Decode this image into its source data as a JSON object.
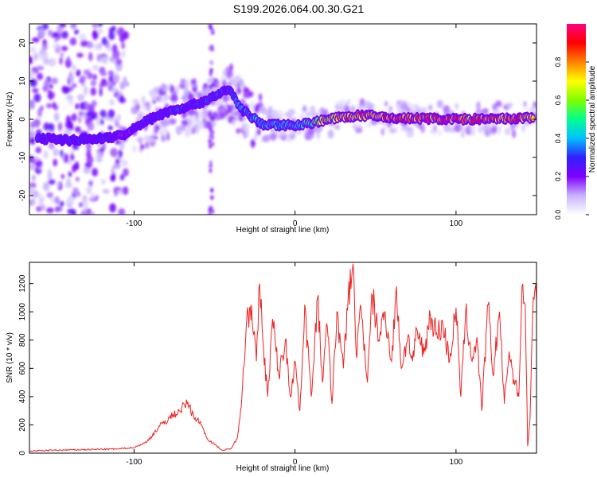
{
  "title": "S199.2026.064.00.30.G21",
  "chart_data": [
    {
      "type": "heatmap",
      "name": "spectrogram",
      "xlabel": "Height of straight line (km)",
      "ylabel": "Frequency (Hz)",
      "xlim": [
        -165,
        150
      ],
      "ylim": [
        -25,
        25
      ],
      "xticks": [
        -100,
        0,
        100
      ],
      "xtick_labels": [
        "-100",
        "0",
        "100"
      ],
      "yticks": [
        -20,
        -10,
        0,
        10,
        20
      ],
      "ytick_labels": [
        "-20",
        "-10",
        "0",
        "10",
        "20"
      ],
      "colorbar": {
        "label": "Normalized spectral amplitude",
        "range": [
          0,
          1
        ],
        "ticks": [
          0.0,
          0.2,
          0.4,
          0.6,
          0.8
        ],
        "tick_labels": [
          "0.0",
          "0.2",
          "0.4",
          "0.6",
          "0.8"
        ],
        "colors": [
          "#ffffff",
          "#c8b4ff",
          "#8000ff",
          "#3020ff",
          "#00c0ff",
          "#00ff90",
          "#80ff00",
          "#ffff00",
          "#ff8000",
          "#ff0000",
          "#ff0080"
        ]
      },
      "ridge": {
        "x": [
          -160,
          -140,
          -120,
          -105,
          -95,
          -85,
          -75,
          -65,
          -55,
          -48,
          -42,
          -38,
          -34,
          -30,
          -25,
          -20,
          -10,
          0,
          10,
          20,
          30,
          40,
          50,
          60,
          80,
          100,
          120,
          140,
          148
        ],
        "frequency": [
          -5,
          -5.5,
          -5,
          -4,
          -1,
          1,
          2.5,
          3.5,
          5,
          6.5,
          8,
          6,
          3,
          1.5,
          0,
          -1.5,
          -1.5,
          -1.5,
          -1,
          0,
          0.5,
          1,
          0.8,
          0.3,
          0.2,
          0,
          0,
          0.2,
          0.5
        ],
        "amplitude": [
          0.3,
          0.3,
          0.3,
          0.2,
          0.3,
          0.3,
          0.35,
          0.3,
          0.35,
          0.35,
          0.3,
          0.35,
          0.4,
          0.4,
          0.4,
          0.4,
          0.45,
          0.45,
          0.55,
          0.75,
          0.8,
          0.85,
          0.85,
          0.9,
          0.9,
          0.9,
          0.85,
          0.85,
          0.7
        ]
      }
    },
    {
      "type": "line",
      "name": "snr",
      "xlabel": "Height of straight line (km)",
      "ylabel": "SNR (10 * v/v)",
      "xlim": [
        -165,
        150
      ],
      "ylim": [
        0,
        1350
      ],
      "xticks": [
        -100,
        0,
        100
      ],
      "xtick_labels": [
        "-100",
        "0",
        "100"
      ],
      "yticks": [
        0,
        200,
        400,
        600,
        800,
        1000,
        1200
      ],
      "ytick_labels": [
        "0",
        "200",
        "400",
        "600",
        "800",
        "1000",
        "1200"
      ],
      "color": "#ee2222",
      "x": [
        -165,
        -150,
        -130,
        -110,
        -100,
        -92,
        -85,
        -78,
        -72,
        -67,
        -62,
        -58,
        -55,
        -50,
        -45,
        -40,
        -36,
        -33,
        -30,
        -27,
        -24,
        -22,
        -20,
        -17,
        -14,
        -10,
        -6,
        -3,
        0,
        3,
        6,
        10,
        14,
        17,
        20,
        23,
        26,
        30,
        33,
        36,
        38,
        41,
        45,
        48,
        52,
        56,
        60,
        63,
        66,
        70,
        73,
        76,
        80,
        84,
        88,
        92,
        96,
        100,
        103,
        106,
        110,
        113,
        116,
        120,
        123,
        127,
        130,
        133,
        136,
        139,
        141,
        143,
        144.5,
        146,
        148,
        150
      ],
      "y": [
        15,
        20,
        25,
        30,
        40,
        80,
        180,
        250,
        300,
        350,
        250,
        200,
        110,
        60,
        20,
        30,
        100,
        400,
        950,
        1050,
        650,
        1200,
        800,
        400,
        950,
        550,
        800,
        400,
        650,
        300,
        1050,
        400,
        1100,
        500,
        900,
        350,
        1000,
        600,
        1100,
        1340,
        700,
        1030,
        500,
        1120,
        800,
        1000,
        650,
        1180,
        600,
        820,
        650,
        860,
        700,
        980,
        850,
        900,
        650,
        1030,
        400,
        1000,
        650,
        820,
        300,
        1050,
        550,
        1000,
        350,
        720,
        520,
        400,
        1180,
        1050,
        50,
        250,
        1100,
        1080
      ]
    }
  ]
}
